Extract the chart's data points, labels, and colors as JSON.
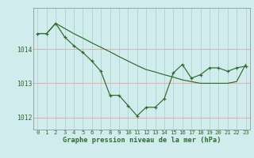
{
  "x": [
    0,
    1,
    2,
    3,
    4,
    5,
    6,
    7,
    8,
    9,
    10,
    11,
    12,
    13,
    14,
    15,
    16,
    17,
    18,
    19,
    20,
    21,
    22,
    23
  ],
  "pressure": [
    1014.45,
    1014.45,
    1014.75,
    1014.35,
    1014.1,
    1013.9,
    1013.65,
    1013.35,
    1012.65,
    1012.65,
    1012.35,
    1012.05,
    1012.3,
    1012.3,
    1012.55,
    1013.3,
    1013.55,
    1013.15,
    1013.25,
    1013.45,
    1013.45,
    1013.35,
    1013.45,
    1013.5
  ],
  "trend": [
    1014.45,
    1014.45,
    1014.75,
    1014.6,
    1014.45,
    1014.32,
    1014.18,
    1014.05,
    1013.92,
    1013.78,
    1013.65,
    1013.52,
    1013.4,
    1013.33,
    1013.25,
    1013.18,
    1013.1,
    1013.05,
    1013.0,
    1013.0,
    1013.0,
    1013.0,
    1013.05,
    1013.55
  ],
  "line_color": "#2d6a2d",
  "bg_color": "#d0ecec",
  "grid_color_v": "#a8cfc8",
  "grid_color_h": "#e8a8a8",
  "xlabel": "Graphe pression niveau de la mer (hPa)",
  "ylim": [
    1011.65,
    1015.2
  ],
  "xlim": [
    -0.5,
    23.5
  ],
  "yticks": [
    1012,
    1013,
    1014
  ],
  "xticks": [
    0,
    1,
    2,
    3,
    4,
    5,
    6,
    7,
    8,
    9,
    10,
    11,
    12,
    13,
    14,
    15,
    16,
    17,
    18,
    19,
    20,
    21,
    22,
    23
  ],
  "tick_fontsize": 5.2,
  "ytick_fontsize": 5.8,
  "xlabel_fontsize": 6.2
}
